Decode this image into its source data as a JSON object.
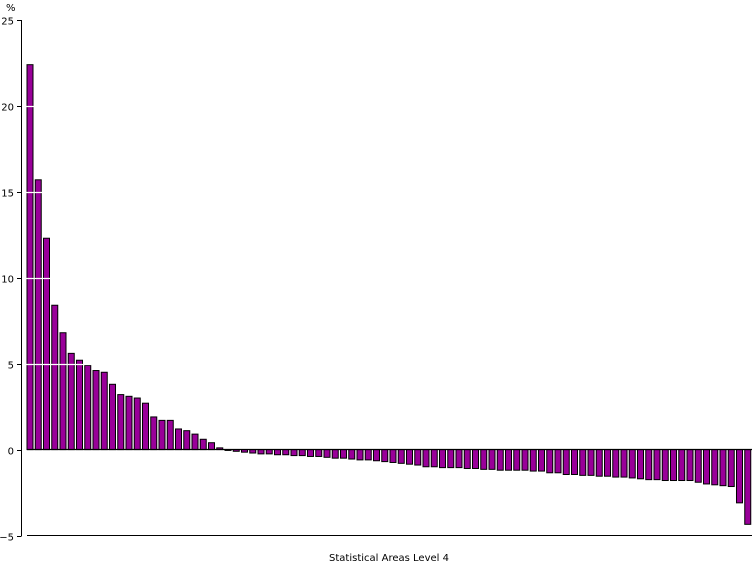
{
  "chart_data": {
    "type": "bar",
    "title": "",
    "xlabel": "Statistical Areas Level 4",
    "ylabel": "%",
    "ylim": [
      -5,
      25
    ],
    "yticks": [
      25,
      20,
      15,
      10,
      5,
      0,
      -5
    ],
    "ytick_labels": [
      "25",
      "20",
      "15",
      "10",
      "5",
      "0",
      "−5"
    ],
    "grid": true,
    "grid_color": "#ffffff",
    "legend": null,
    "bar_color": "#990099",
    "bar_edge_color": "#000000",
    "categories_note": "88 unlabelled Statistical Areas Level 4, sorted descending",
    "values": [
      22.4,
      15.7,
      12.3,
      8.4,
      6.8,
      5.6,
      5.2,
      4.9,
      4.6,
      4.5,
      3.8,
      3.2,
      3.1,
      3.0,
      2.7,
      1.9,
      1.7,
      1.7,
      1.2,
      1.1,
      0.9,
      0.6,
      0.4,
      0.1,
      -0.05,
      -0.1,
      -0.15,
      -0.2,
      -0.25,
      -0.25,
      -0.3,
      -0.3,
      -0.35,
      -0.35,
      -0.4,
      -0.4,
      -0.45,
      -0.5,
      -0.5,
      -0.55,
      -0.6,
      -0.6,
      -0.65,
      -0.7,
      -0.75,
      -0.8,
      -0.85,
      -0.9,
      -1.0,
      -1.0,
      -1.05,
      -1.05,
      -1.05,
      -1.1,
      -1.1,
      -1.15,
      -1.15,
      -1.2,
      -1.2,
      -1.2,
      -1.2,
      -1.25,
      -1.25,
      -1.35,
      -1.35,
      -1.45,
      -1.45,
      -1.5,
      -1.5,
      -1.55,
      -1.55,
      -1.6,
      -1.6,
      -1.65,
      -1.7,
      -1.75,
      -1.75,
      -1.8,
      -1.8,
      -1.8,
      -1.8,
      -1.9,
      -2.0,
      -2.05,
      -2.1,
      -2.15,
      -3.1,
      -4.35
    ]
  }
}
